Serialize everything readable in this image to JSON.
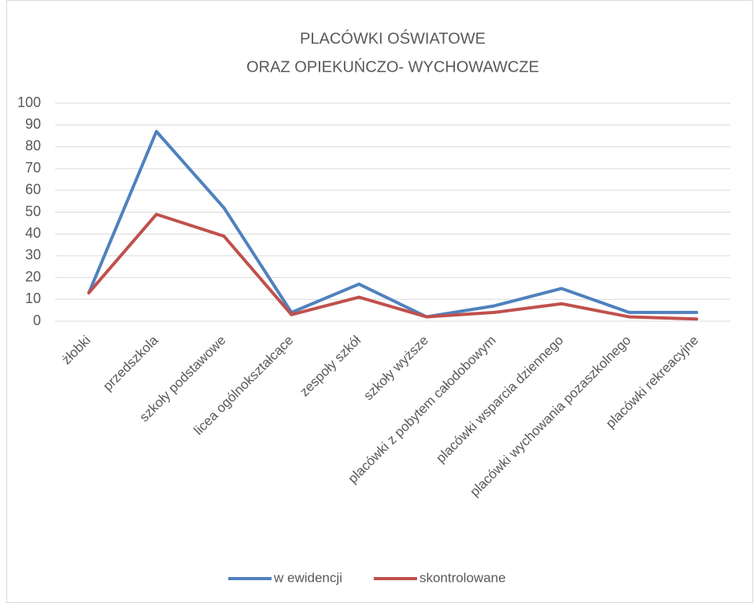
{
  "chart_data": {
    "type": "line",
    "title": "PLACÓWKI OŚWIATOWE",
    "subtitle": "ORAZ OPIEKUŃCZO- WYCHOWAWCZE",
    "categories": [
      "żłobki",
      "przedszkola",
      "szkoły podstawowe",
      "licea ogólnokształcące",
      "zespoły szkół",
      "szkoły wyższe",
      "placówki z pobytem całodobowym",
      "placówki wsparcia dziennego",
      "placówki wychowania pozaszkolnego",
      "placówki rekreacyjne"
    ],
    "series": [
      {
        "name": "w ewidencji",
        "color": "#4f81bd",
        "values": [
          13,
          87,
          52,
          4,
          17,
          2,
          7,
          15,
          4,
          4
        ]
      },
      {
        "name": "skontrolowane",
        "color": "#c0504d",
        "values": [
          13,
          49,
          39,
          3,
          11,
          2,
          4,
          8,
          2,
          1
        ]
      }
    ],
    "ylim": [
      0,
      100
    ],
    "yticks": [
      0,
      10,
      20,
      30,
      40,
      50,
      60,
      70,
      80,
      90,
      100
    ],
    "grid": true,
    "legend": "bottom"
  }
}
